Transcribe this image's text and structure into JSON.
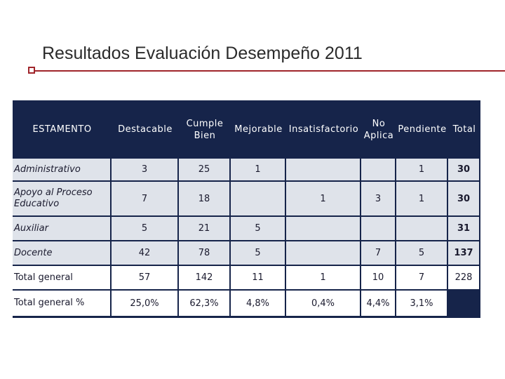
{
  "title": "Resultados Evaluación Desempeño 2011",
  "table": {
    "headers": [
      "ESTAMENTO",
      "Destacable",
      "Cumple\nBien",
      "Mejorable",
      "Insatisfactorio",
      "No\nAplica",
      "Pendiente",
      "Total"
    ],
    "rows": [
      [
        "Administrativo",
        "3",
        "25",
        "1",
        "",
        "",
        "1",
        "30"
      ],
      [
        "Apoyo al Proceso Educativo",
        "7",
        "18",
        "",
        "1",
        "3",
        "1",
        "30"
      ],
      [
        "Auxiliar",
        "5",
        "21",
        "5",
        "",
        "",
        "",
        "31"
      ],
      [
        "Docente",
        "42",
        "78",
        "5",
        "",
        "7",
        "5",
        "137"
      ],
      [
        "Total general",
        "57",
        "142",
        "11",
        "1",
        "10",
        "7",
        "228"
      ],
      [
        "Total general %",
        "25,0%",
        "62,3%",
        "4,8%",
        "0,4%",
        "4,4%",
        "3,1%",
        ""
      ]
    ]
  },
  "colors": {
    "header_bg": "#16244a",
    "cell_bg": "#dfe3ea",
    "accent_line": "#a0252b"
  }
}
